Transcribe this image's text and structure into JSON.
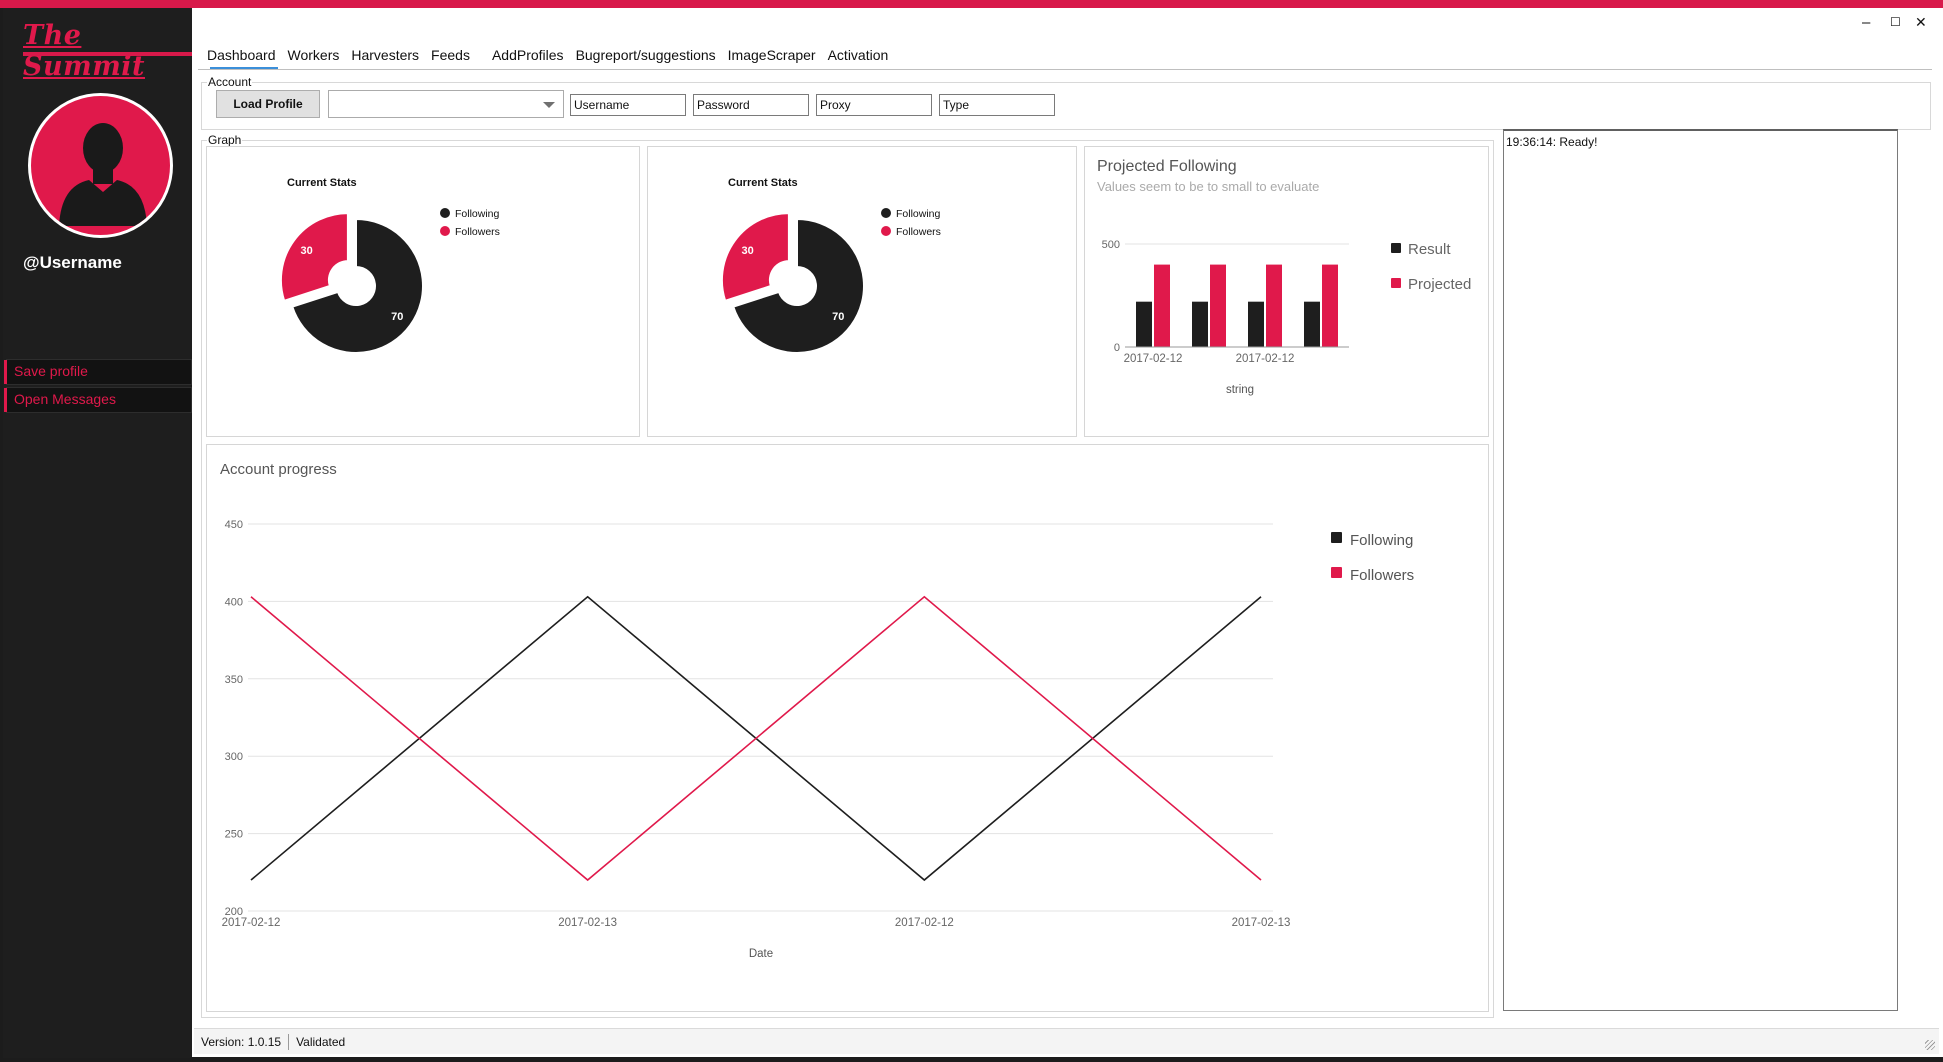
{
  "app": {
    "logo_text": "The Summit",
    "username": "@Username",
    "accent_color": "#e0194b",
    "dark_color": "#1e1e1e"
  },
  "window_controls": {
    "minimize": "–",
    "maximize": "☐",
    "close": "✕"
  },
  "sidebar": {
    "buttons": [
      {
        "label": "Save profile"
      },
      {
        "label": "Open Messages"
      }
    ]
  },
  "tabs": [
    {
      "label": "Dashboard",
      "active": true
    },
    {
      "label": "Workers"
    },
    {
      "label": "Harvesters"
    },
    {
      "label": "Feeds"
    },
    {
      "label": "AddProfiles"
    },
    {
      "label": "Bugreport/suggestions"
    },
    {
      "label": "ImageScraper"
    },
    {
      "label": "Activation"
    }
  ],
  "account": {
    "group_label": "Account",
    "load_button": "Load Profile",
    "profile_select_value": "",
    "fields": {
      "username": "Username",
      "password": "Password",
      "proxy": "Proxy",
      "type": "Type"
    }
  },
  "graph": {
    "group_label": "Graph"
  },
  "log": {
    "lines": [
      "19:36:14: Ready!"
    ]
  },
  "status_bar": {
    "version": "Version: 1.0.15",
    "state": "Validated"
  },
  "chart_data": [
    {
      "type": "pie",
      "title": "Current Stats",
      "labels": [
        "Following",
        "Followers"
      ],
      "values": [
        70,
        30
      ],
      "colors": [
        "#1e1e1e",
        "#e0194b"
      ],
      "donut": true,
      "legend": "right"
    },
    {
      "type": "pie",
      "title": "Current Stats",
      "labels": [
        "Following",
        "Followers"
      ],
      "values": [
        70,
        30
      ],
      "colors": [
        "#1e1e1e",
        "#e0194b"
      ],
      "donut": true,
      "legend": "right"
    },
    {
      "type": "bar",
      "title": "Projected Following",
      "subtitle": "Values seem to be to small to evaluate",
      "categories": [
        "2017-02-12",
        "",
        "2017-02-12",
        ""
      ],
      "series": [
        {
          "name": "Result",
          "values": [
            220,
            220,
            220,
            220
          ],
          "color": "#1e1e1e"
        },
        {
          "name": "Projected",
          "values": [
            400,
            400,
            400,
            400
          ],
          "color": "#e0194b"
        }
      ],
      "xlabel": "string",
      "ylabel": "",
      "ylim": [
        0,
        500
      ],
      "yticks": [
        0,
        500
      ],
      "legend": "right"
    },
    {
      "type": "line",
      "title": "Account progress",
      "x": [
        "2017-02-12",
        "2017-02-13",
        "2017-02-12",
        "2017-02-13"
      ],
      "series": [
        {
          "name": "Following",
          "values": [
            220,
            403,
            220,
            403
          ],
          "color": "#1e1e1e"
        },
        {
          "name": "Followers",
          "values": [
            403,
            220,
            403,
            220
          ],
          "color": "#e0194b"
        }
      ],
      "xlabel": "Date",
      "ylabel": "",
      "ylim": [
        200,
        450
      ],
      "yticks": [
        200,
        250,
        300,
        350,
        400,
        450
      ],
      "grid": true,
      "legend": "right"
    }
  ]
}
